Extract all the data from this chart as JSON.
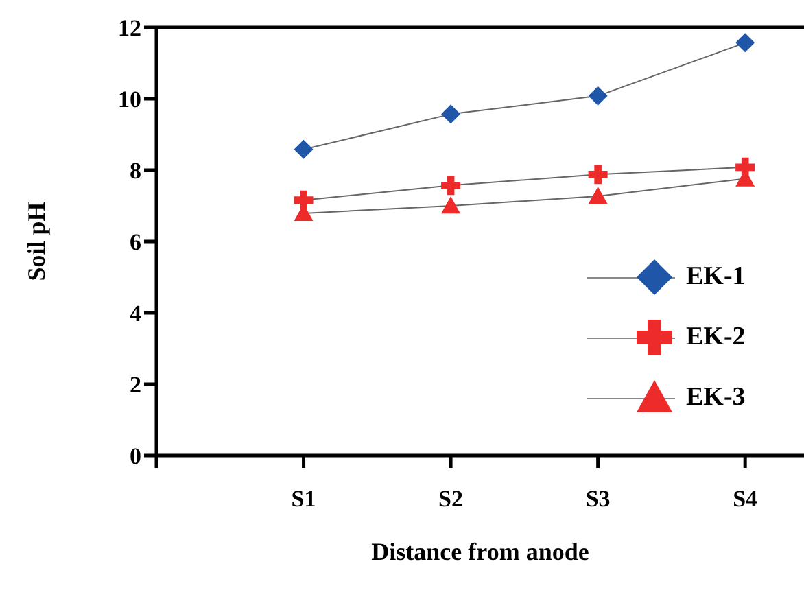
{
  "chart_data": {
    "type": "line",
    "xlabel": "Distance from anode",
    "ylabel": "Soil pH",
    "categories": [
      "S1",
      "S2",
      "S3",
      "S4"
    ],
    "ylim": [
      0,
      12
    ],
    "yticks": [
      0,
      2,
      4,
      6,
      8,
      10,
      12
    ],
    "grid": false,
    "legend": "right",
    "series": [
      {
        "name": "EK-1",
        "color": "#1f56a8",
        "marker": "diamond",
        "values": [
          8.58,
          9.57,
          10.08,
          11.57
        ]
      },
      {
        "name": "EK-2",
        "color": "#ee2b2b",
        "marker": "cross",
        "values": [
          7.16,
          7.57,
          7.88,
          8.08
        ]
      },
      {
        "name": "EK-3",
        "color": "#ee2b2b",
        "marker": "triangle",
        "values": [
          6.79,
          7.0,
          7.27,
          7.76
        ]
      }
    ]
  }
}
